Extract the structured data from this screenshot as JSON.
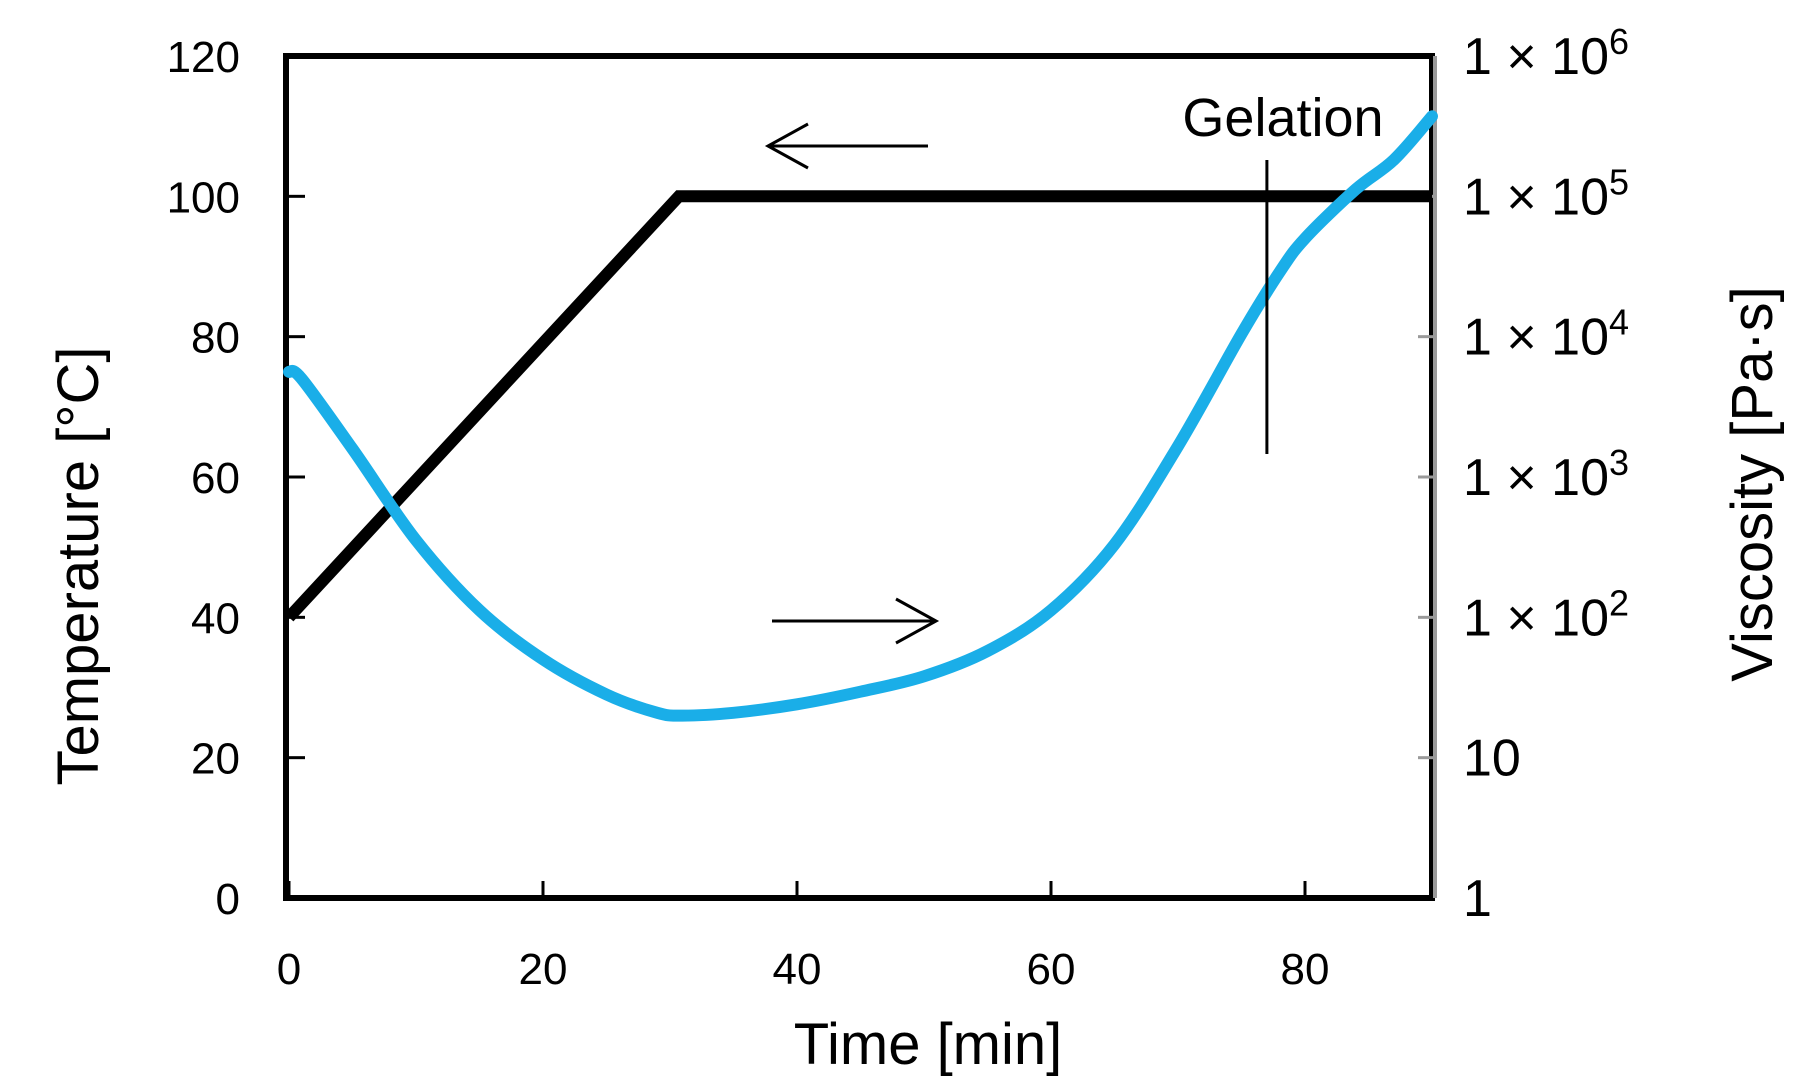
{
  "chart_data": {
    "type": "line",
    "title": "",
    "xlabel": "Time [min]",
    "ylabel_left": "Temperature [°C]",
    "ylabel_right": "Viscosity [Pa·s]",
    "xlim": [
      0,
      90
    ],
    "ylim_left": [
      0,
      120
    ],
    "ylim_right_log10": [
      0,
      6
    ],
    "x_ticks": [
      "0",
      "20",
      "40",
      "60",
      "80"
    ],
    "x_tick_values": [
      0,
      20,
      40,
      60,
      80
    ],
    "y_left_ticks": [
      "0",
      "20",
      "40",
      "60",
      "80",
      "100",
      "120"
    ],
    "y_left_tick_values": [
      0,
      20,
      40,
      60,
      80,
      100,
      120
    ],
    "y_right_ticks": [
      {
        "label": "1",
        "base": "",
        "exp": "",
        "log": 0
      },
      {
        "label": "10",
        "base": "",
        "exp": "",
        "log": 1
      },
      {
        "label": "1 × 10",
        "base": "1 × 10",
        "exp": "2",
        "log": 2
      },
      {
        "label": "1 × 10",
        "base": "1 × 10",
        "exp": "3",
        "log": 3
      },
      {
        "label": "1 × 10",
        "base": "1 × 10",
        "exp": "4",
        "log": 4
      },
      {
        "label": "1 × 10",
        "base": "1 × 10",
        "exp": "5",
        "log": 5
      },
      {
        "label": "1 × 10",
        "base": "1 × 10",
        "exp": "6",
        "log": 6
      }
    ],
    "series": [
      {
        "name": "Temperature",
        "axis": "left",
        "color": "#000000",
        "x": [
          0,
          30.7,
          90
        ],
        "y": [
          40,
          100,
          100
        ]
      },
      {
        "name": "Viscosity",
        "axis": "right",
        "color": "#1aaee8",
        "x": [
          0,
          1,
          5,
          10,
          15,
          20,
          25,
          29,
          31,
          35,
          40,
          45,
          50,
          55,
          60,
          65,
          70,
          75,
          78,
          80,
          84,
          87,
          90
        ],
        "log10_y": [
          3.75,
          3.7,
          3.2,
          2.55,
          2.05,
          1.7,
          1.45,
          1.32,
          1.3,
          1.32,
          1.38,
          1.47,
          1.58,
          1.76,
          2.05,
          2.52,
          3.22,
          4.02,
          4.46,
          4.7,
          5.05,
          5.26,
          5.57
        ]
      }
    ],
    "annotations": [
      {
        "text": "Gelation",
        "x": 77
      },
      {
        "text": "←",
        "points_to": "Temperature (left axis)"
      },
      {
        "text": "→",
        "points_to": "Viscosity (right axis)"
      }
    ]
  }
}
